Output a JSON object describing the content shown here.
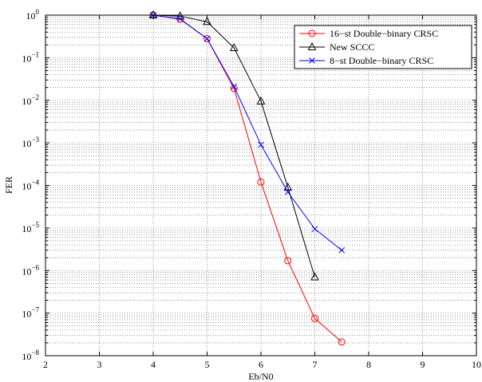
{
  "chart_data": {
    "type": "line",
    "xlabel": "Eb/N0",
    "ylabel": "FER",
    "xlim": [
      2,
      10
    ],
    "ylim": [
      1e-08,
      1
    ],
    "y_scale": "log",
    "grid": true,
    "legend_position": "top-right",
    "x_ticks": [
      "2",
      "3",
      "4",
      "5",
      "6",
      "7",
      "8",
      "9",
      "10"
    ],
    "y_tick_exponents": [
      "0",
      "-1",
      "-2",
      "-3",
      "-4",
      "-5",
      "-6",
      "-7",
      "-8"
    ],
    "series": [
      {
        "name": "16−st Double−binary CRSC",
        "color": "#ff0000",
        "marker": "circle",
        "x": [
          4,
          4.5,
          5,
          5.5,
          6,
          6.5,
          7,
          7.5
        ],
        "y": [
          1.0,
          0.8,
          0.28,
          0.019,
          0.00012,
          1.7e-06,
          7.5e-08,
          2.1e-08
        ]
      },
      {
        "name": "New SCCC",
        "color": "#000000",
        "marker": "triangle",
        "x": [
          4,
          4.5,
          5,
          5.5,
          6,
          6.5,
          7
        ],
        "y": [
          1.0,
          0.95,
          0.7,
          0.17,
          0.0095,
          9e-05,
          7e-07
        ]
      },
      {
        "name": "8−st Double−binary CRSC",
        "color": "#0000ff",
        "marker": "x",
        "x": [
          4,
          4.5,
          5,
          5.5,
          6,
          6.5,
          7,
          7.5
        ],
        "y": [
          1.0,
          0.82,
          0.28,
          0.021,
          0.0009,
          7e-05,
          9.5e-06,
          3e-06
        ]
      }
    ]
  }
}
